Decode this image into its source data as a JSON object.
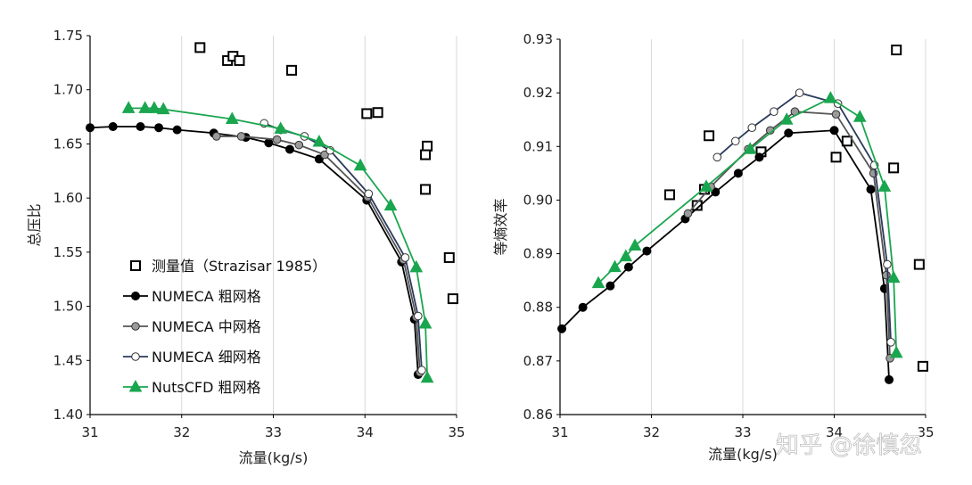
{
  "watermark": "知乎 @徐慎忽",
  "colors": {
    "numeca_coarse": "#000000",
    "numeca_medium": "#555555",
    "numeca_fine": "#2b3a5c",
    "nutscfd": "#1aa64f",
    "grid": "#d9d9d9",
    "axis": "#000000"
  },
  "chart_data": [
    {
      "type": "line",
      "xlabel": "流量(kg/s)",
      "ylabel": "总压比",
      "xlim": [
        31,
        35
      ],
      "ylim": [
        1.4,
        1.75
      ],
      "xticks": [
        "31",
        "32",
        "33",
        "34",
        "35"
      ],
      "yticks": [
        "1.40",
        "1.45",
        "1.50",
        "1.55",
        "1.60",
        "1.65",
        "1.70",
        "1.75"
      ],
      "grid": "vertical",
      "legend_position": "lower-left",
      "series": [
        {
          "name": "测量值（Strazisar 1985）",
          "style": "square-marker-only",
          "color": "#000000",
          "points": [
            [
              32.2,
              1.739
            ],
            [
              32.5,
              1.727
            ],
            [
              32.56,
              1.731
            ],
            [
              32.63,
              1.727
            ],
            [
              33.2,
              1.718
            ],
            [
              34.02,
              1.678
            ],
            [
              34.14,
              1.679
            ],
            [
              34.68,
              1.648
            ],
            [
              34.66,
              1.64
            ],
            [
              34.66,
              1.608
            ],
            [
              34.92,
              1.545
            ],
            [
              34.96,
              1.507
            ]
          ]
        },
        {
          "name": "NUMECA 粗网格",
          "style": "filled-circle",
          "color": "#000000",
          "points": [
            [
              31.0,
              1.665
            ],
            [
              31.25,
              1.666
            ],
            [
              31.55,
              1.666
            ],
            [
              31.75,
              1.665
            ],
            [
              31.95,
              1.663
            ],
            [
              32.35,
              1.66
            ],
            [
              32.7,
              1.656
            ],
            [
              32.95,
              1.651
            ],
            [
              33.18,
              1.645
            ],
            [
              33.5,
              1.636
            ],
            [
              34.02,
              1.598
            ],
            [
              34.4,
              1.541
            ],
            [
              34.54,
              1.488
            ],
            [
              34.58,
              1.437
            ]
          ]
        },
        {
          "name": "NUMECA 中网格",
          "style": "gray-circle",
          "color": "#555555",
          "points": [
            [
              32.38,
              1.657
            ],
            [
              32.65,
              1.657
            ],
            [
              33.04,
              1.654
            ],
            [
              33.28,
              1.649
            ],
            [
              33.56,
              1.64
            ],
            [
              34.03,
              1.601
            ],
            [
              34.42,
              1.543
            ],
            [
              34.56,
              1.49
            ],
            [
              34.6,
              1.439
            ]
          ]
        },
        {
          "name": "NUMECA 细网格",
          "style": "open-circle",
          "color": "#2b3a5c",
          "points": [
            [
              32.9,
              1.669
            ],
            [
              33.08,
              1.663
            ],
            [
              33.34,
              1.657
            ],
            [
              33.62,
              1.644
            ],
            [
              34.04,
              1.604
            ],
            [
              34.44,
              1.545
            ],
            [
              34.58,
              1.491
            ],
            [
              34.62,
              1.441
            ]
          ]
        },
        {
          "name": "NutsCFD 粗网格",
          "style": "filled-triangle",
          "color": "#1aa64f",
          "points": [
            [
              31.42,
              1.683
            ],
            [
              31.6,
              1.683
            ],
            [
              31.7,
              1.683
            ],
            [
              31.8,
              1.682
            ],
            [
              32.55,
              1.673
            ],
            [
              33.08,
              1.664
            ],
            [
              33.5,
              1.652
            ],
            [
              33.95,
              1.63
            ],
            [
              34.28,
              1.593
            ],
            [
              34.56,
              1.536
            ],
            [
              34.66,
              1.484
            ],
            [
              34.68,
              1.434
            ]
          ]
        }
      ]
    },
    {
      "type": "line",
      "xlabel": "流量(kg/s)",
      "ylabel": "等熵效率",
      "xlim": [
        31,
        35
      ],
      "ylim": [
        0.86,
        0.93
      ],
      "xticks": [
        "31",
        "32",
        "33",
        "34",
        "35"
      ],
      "yticks": [
        "0.86",
        "0.87",
        "0.88",
        "0.89",
        "0.90",
        "0.91",
        "0.92",
        "0.93"
      ],
      "grid": "vertical",
      "series": [
        {
          "name": "测量值（Strazisar 1985）",
          "style": "square-marker-only",
          "color": "#000000",
          "points": [
            [
              32.2,
              0.901
            ],
            [
              32.5,
              0.899
            ],
            [
              32.58,
              0.902
            ],
            [
              32.63,
              0.912
            ],
            [
              33.2,
              0.909
            ],
            [
              34.02,
              0.908
            ],
            [
              34.14,
              0.911
            ],
            [
              34.65,
              0.906
            ],
            [
              34.68,
              0.928
            ],
            [
              34.93,
              0.888
            ],
            [
              34.97,
              0.869
            ]
          ]
        },
        {
          "name": "NUMECA 粗网格",
          "style": "filled-circle",
          "color": "#000000",
          "points": [
            [
              31.02,
              0.876
            ],
            [
              31.25,
              0.88
            ],
            [
              31.55,
              0.884
            ],
            [
              31.75,
              0.8875
            ],
            [
              31.95,
              0.8905
            ],
            [
              32.37,
              0.8965
            ],
            [
              32.7,
              0.9015
            ],
            [
              32.95,
              0.905
            ],
            [
              33.18,
              0.908
            ],
            [
              33.5,
              0.9125
            ],
            [
              34.0,
              0.913
            ],
            [
              34.4,
              0.902
            ],
            [
              34.55,
              0.8835
            ],
            [
              34.6,
              0.8665
            ]
          ]
        },
        {
          "name": "NUMECA 中网格",
          "style": "gray-circle",
          "color": "#555555",
          "points": [
            [
              32.4,
              0.8975
            ],
            [
              32.65,
              0.9025
            ],
            [
              33.06,
              0.9095
            ],
            [
              33.3,
              0.913
            ],
            [
              33.57,
              0.9165
            ],
            [
              34.02,
              0.916
            ],
            [
              34.43,
              0.905
            ],
            [
              34.57,
              0.886
            ],
            [
              34.61,
              0.8705
            ]
          ]
        },
        {
          "name": "NUMECA 细网格",
          "style": "open-circle",
          "color": "#2b3a5c",
          "points": [
            [
              32.72,
              0.908
            ],
            [
              32.92,
              0.911
            ],
            [
              33.1,
              0.9135
            ],
            [
              33.34,
              0.9165
            ],
            [
              33.62,
              0.92
            ],
            [
              34.04,
              0.918
            ],
            [
              34.44,
              0.9065
            ],
            [
              34.58,
              0.888
            ],
            [
              34.62,
              0.8735
            ]
          ]
        },
        {
          "name": "NutsCFD 粗网格",
          "style": "filled-triangle",
          "color": "#1aa64f",
          "points": [
            [
              31.42,
              0.8845
            ],
            [
              31.6,
              0.8875
            ],
            [
              31.72,
              0.8895
            ],
            [
              31.82,
              0.8915
            ],
            [
              32.6,
              0.9025
            ],
            [
              33.08,
              0.9095
            ],
            [
              33.48,
              0.915
            ],
            [
              33.96,
              0.919
            ],
            [
              34.28,
              0.9155
            ],
            [
              34.55,
              0.9025
            ],
            [
              34.65,
              0.8855
            ],
            [
              34.68,
              0.8715
            ]
          ]
        }
      ]
    }
  ]
}
